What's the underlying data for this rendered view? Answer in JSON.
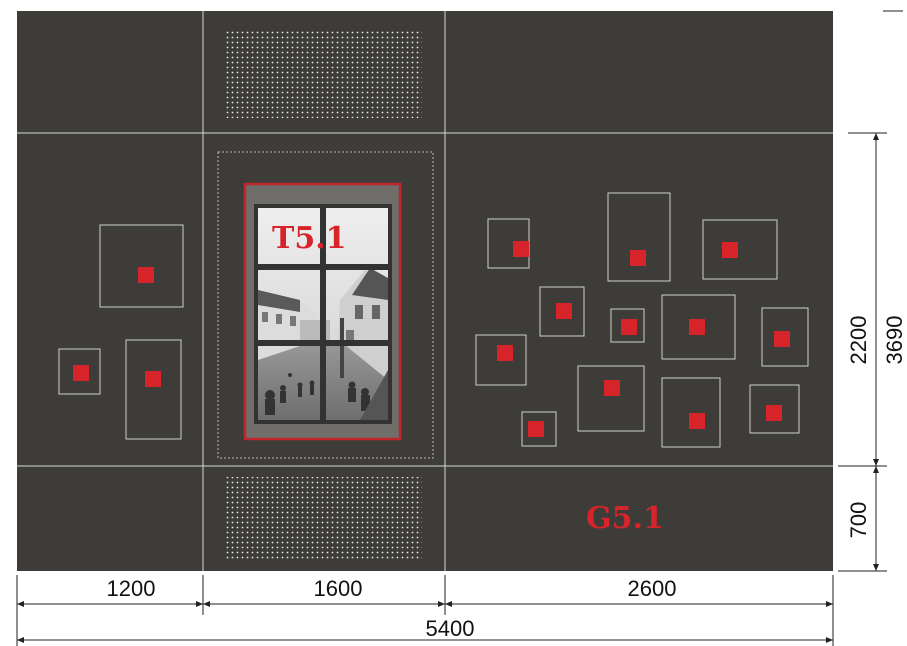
{
  "labels": {
    "panel_code": "T5.1",
    "wall_code": "G5.1"
  },
  "dimensions": {
    "widths": [
      "1200",
      "1600",
      "2600"
    ],
    "total_width": "5400",
    "heights": [
      "2200",
      "700"
    ],
    "total_height": "3690"
  },
  "colors": {
    "wall": "#3d3c38",
    "accent_red": "#d7232a",
    "panel_frame_red": "#c0262b",
    "grid_line": "#d8d8d8",
    "perforation_dot": "#e9e9e9",
    "dimension_line": "#222222",
    "window_frame": "#333333"
  },
  "icons": {
    "dimension_arrow": "arrowhead",
    "marker": "red-square"
  }
}
